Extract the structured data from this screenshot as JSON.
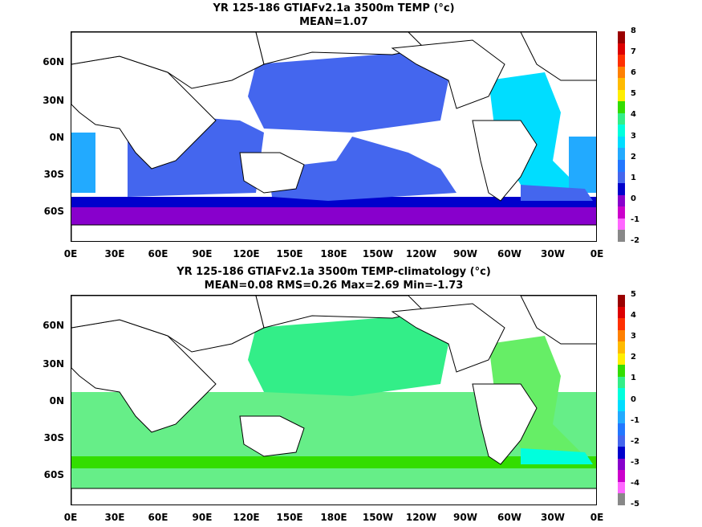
{
  "panels": [
    {
      "title_line1": "YR 125-186 GTIAFv2.1a 3500m TEMP (°c)",
      "title_line2": "MEAN=1.07",
      "colorbar_labels": [
        "8",
        "7",
        "6",
        "5",
        "4",
        "3",
        "2",
        "1",
        "0",
        "-1",
        "-2"
      ],
      "colors": [
        "#9a0000",
        "#dd0000",
        "#ff3000",
        "#ff8000",
        "#ffbb00",
        "#ffee00",
        "#33dd00",
        "#33ee88",
        "#00ffdd",
        "#00ddff",
        "#22aaff",
        "#2277ff",
        "#4466ee",
        "#0000cc",
        "#8800cc",
        "#cc00cc",
        "#ff66ff",
        "#888888"
      ]
    },
    {
      "title_line1": "YR 125-186 GTIAFv2.1a 3500m TEMP-climatology (°c)",
      "title_line2": "MEAN=0.08   RMS=0.26   Max=2.69   Min=-1.73",
      "colorbar_labels": [
        "5",
        "4",
        "3",
        "2",
        "1",
        "0",
        "-1",
        "-2",
        "-3",
        "-4",
        "-5"
      ],
      "colors": [
        "#9a0000",
        "#dd0000",
        "#ff3000",
        "#ff8000",
        "#ffbb00",
        "#ffee00",
        "#33dd00",
        "#33ee88",
        "#00ffdd",
        "#00ddff",
        "#22aaff",
        "#2277ff",
        "#4466ee",
        "#0000cc",
        "#8800cc",
        "#cc00cc",
        "#ff66ff",
        "#888888"
      ]
    }
  ],
  "lat_labels": [
    "60N",
    "30N",
    "0N",
    "30S",
    "60S"
  ],
  "lon_labels": [
    "0E",
    "30E",
    "60E",
    "90E",
    "120E",
    "150E",
    "180E",
    "150W",
    "120W",
    "90W",
    "60W",
    "30W",
    "0E"
  ]
}
